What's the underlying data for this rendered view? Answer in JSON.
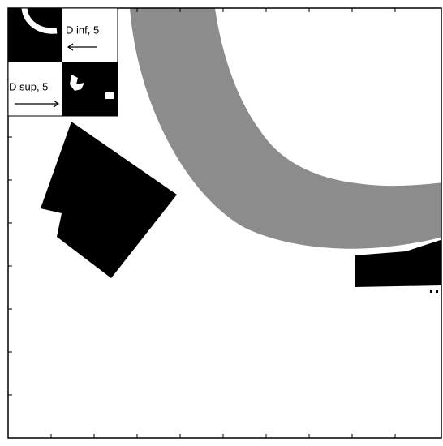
{
  "labels": {
    "inf": "D inf, 5",
    "sup": "D sup, 5"
  }
}
